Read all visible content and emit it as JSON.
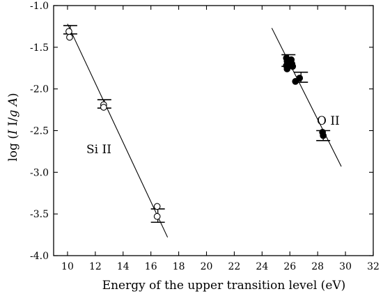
{
  "chart_data": {
    "type": "scatter",
    "xlabel": "Energy of the upper transition level (eV)",
    "ylabel_parts": [
      "log (",
      "I",
      " I/",
      "g A",
      ")"
    ],
    "xlim": [
      9,
      32
    ],
    "ylim": [
      -4.0,
      -1.0
    ],
    "x_ticks": [
      10,
      12,
      14,
      16,
      18,
      20,
      22,
      24,
      26,
      28,
      30,
      32
    ],
    "y_ticks": [
      -4.0,
      -3.5,
      -3.0,
      -2.5,
      -2.0,
      -1.5,
      -1.0
    ],
    "grid": false,
    "series": [
      {
        "name": "Si II",
        "marker": "open-circle",
        "points": [
          {
            "x": 10.1,
            "y": -1.31
          },
          {
            "x": 10.15,
            "y": -1.38
          },
          {
            "x": 12.6,
            "y": -2.19
          },
          {
            "x": 12.6,
            "y": -2.22
          },
          {
            "x": 16.45,
            "y": -3.41
          },
          {
            "x": 16.45,
            "y": -3.53
          }
        ],
        "error_bars": [
          {
            "x": 10.2,
            "y": -1.29,
            "err": 0.05
          },
          {
            "x": 12.65,
            "y": -2.18,
            "err": 0.05
          },
          {
            "x": 16.5,
            "y": -3.52,
            "err": 0.08
          }
        ],
        "fit_line": {
          "x": [
            10.0,
            17.2
          ],
          "y": [
            -1.22,
            -3.78
          ]
        }
      },
      {
        "name": "O II",
        "marker": "filled-circle",
        "points": [
          {
            "x": 25.75,
            "y": -1.63
          },
          {
            "x": 25.8,
            "y": -1.67
          },
          {
            "x": 25.75,
            "y": -1.72
          },
          {
            "x": 25.8,
            "y": -1.76
          },
          {
            "x": 26.1,
            "y": -1.65
          },
          {
            "x": 26.15,
            "y": -1.7
          },
          {
            "x": 26.2,
            "y": -1.73
          },
          {
            "x": 26.4,
            "y": -1.91
          },
          {
            "x": 26.7,
            "y": -1.87
          },
          {
            "x": 28.35,
            "y": -2.52
          },
          {
            "x": 28.4,
            "y": -2.56
          }
        ],
        "error_bars": [
          {
            "x": 25.9,
            "y": -1.66,
            "err": 0.07
          },
          {
            "x": 26.8,
            "y": -1.86,
            "err": 0.06
          },
          {
            "x": 28.4,
            "y": -2.56,
            "err": 0.06
          }
        ],
        "fit_line": {
          "x": [
            24.7,
            29.7
          ],
          "y": [
            -1.27,
            -2.93
          ]
        }
      }
    ]
  }
}
